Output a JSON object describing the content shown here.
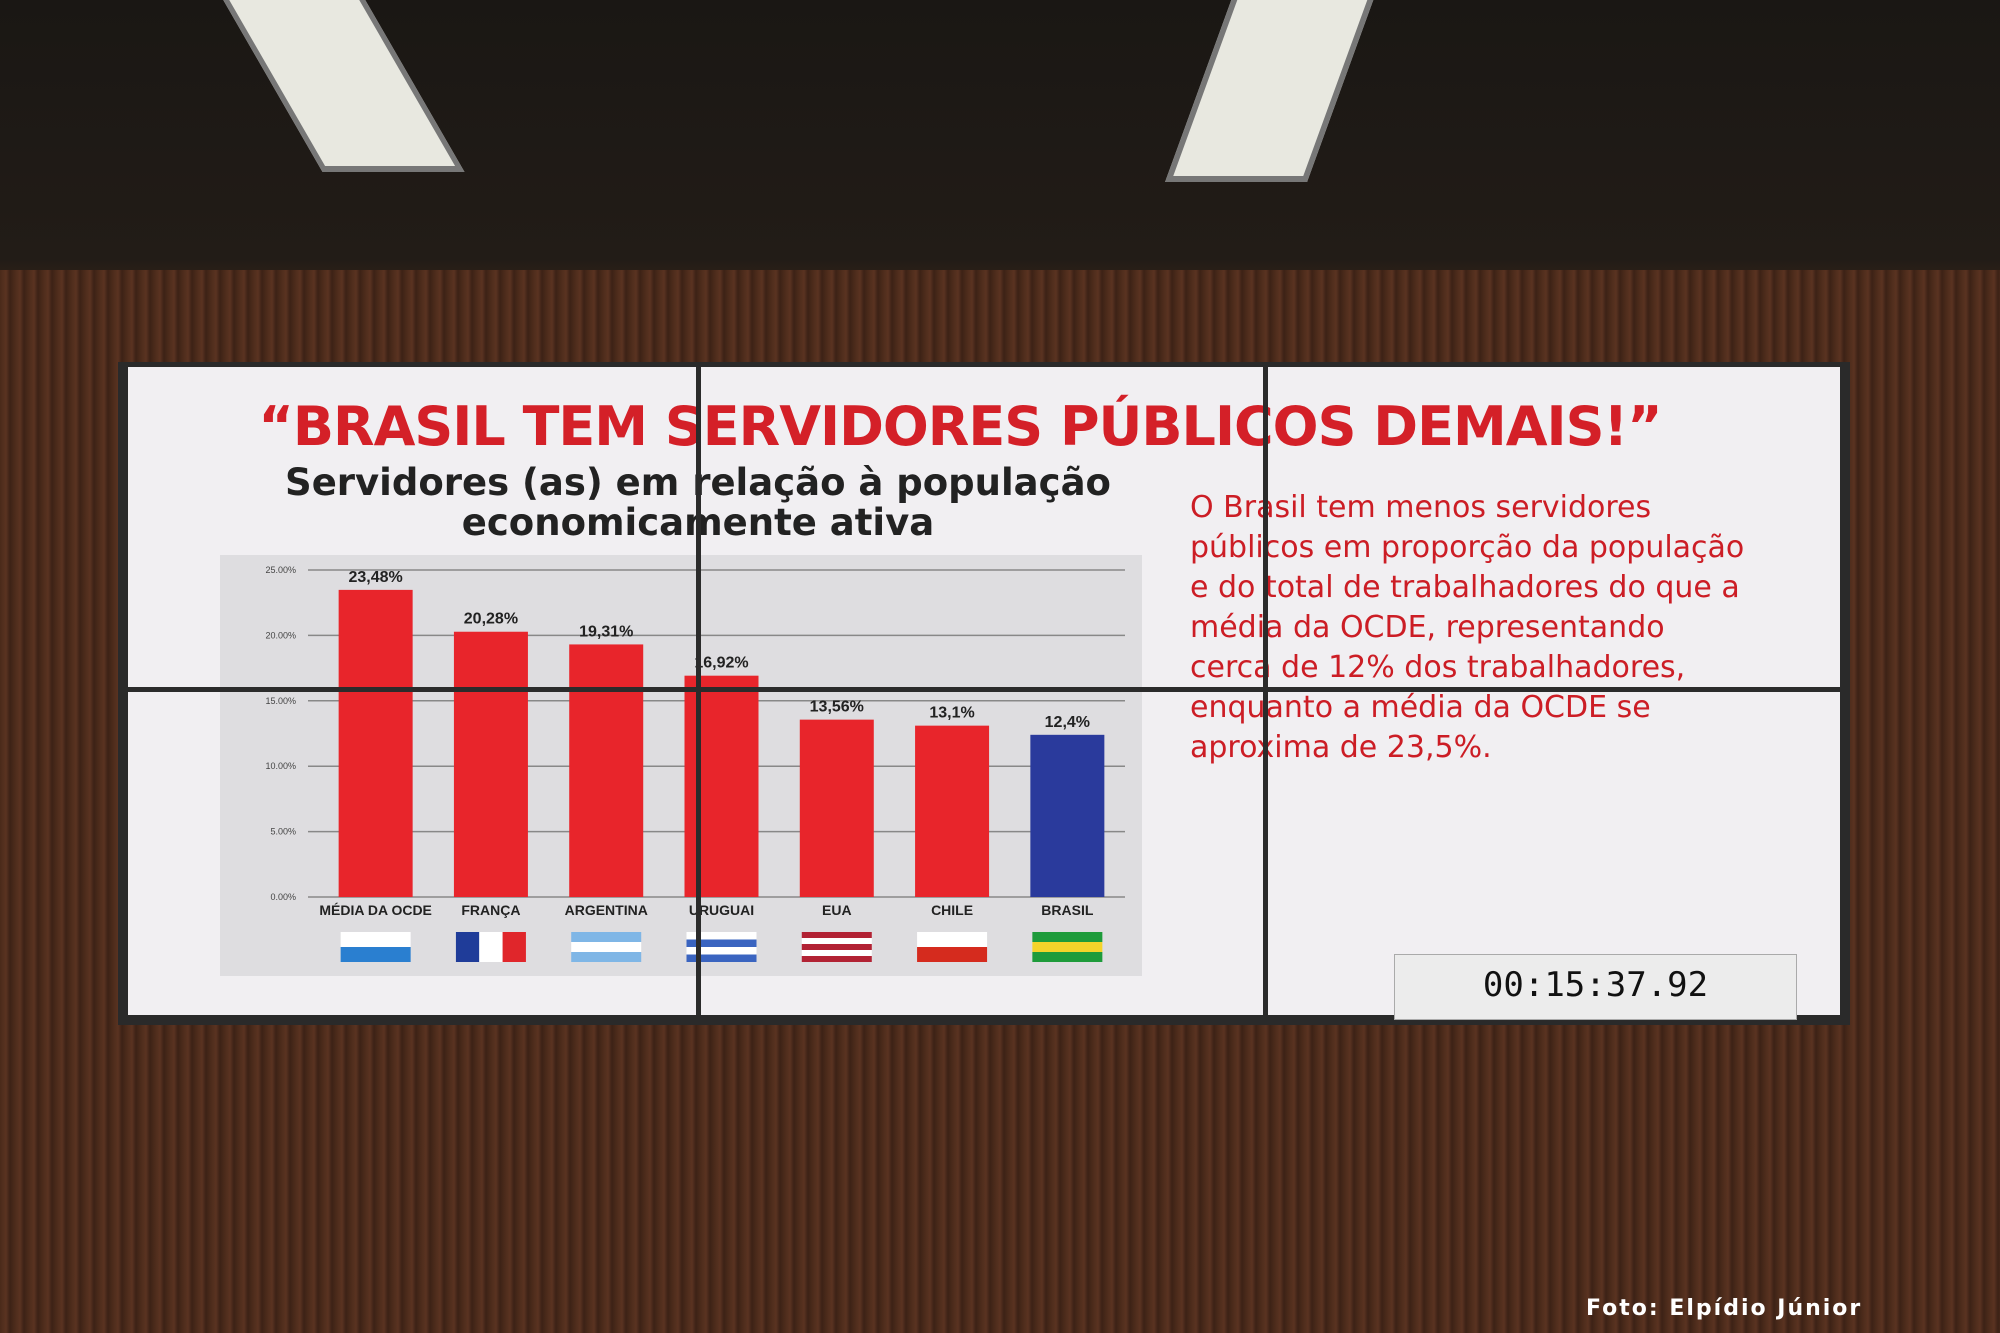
{
  "slide": {
    "heading": "“BRASIL TEM SERVIDORES PÚBLICOS DEMAIS!”",
    "paragraph": "O Brasil tem menos servidores públicos em proporção da população e do total de trabalhadores do que a média da OCDE, representando cerca de 12% dos trabalhadores, enquanto a média da OCDE se aproxima de 23,5%."
  },
  "chart_data": {
    "type": "bar",
    "title": "Servidores (as) em relação à população economicamente ativa",
    "categories": [
      "MÉDIA DA OCDE",
      "FRANÇA",
      "ARGENTINA",
      "URUGUAI",
      "EUA",
      "CHILE",
      "BRASIL"
    ],
    "values": [
      23.48,
      20.28,
      19.31,
      16.92,
      13.56,
      13.1,
      12.4
    ],
    "value_labels": [
      "23,48%",
      "20,28%",
      "19,31%",
      "16,92%",
      "13,56%",
      "13,1%",
      "12,4%"
    ],
    "colors": [
      "#e8252b",
      "#e8252b",
      "#e8252b",
      "#e8252b",
      "#e8252b",
      "#e8252b",
      "#2a3a9c"
    ],
    "ylim": [
      0,
      25
    ],
    "yticks": [
      {
        "value": 0,
        "label": "0.00%"
      },
      {
        "value": 5,
        "label": "5.00%"
      },
      {
        "value": 10,
        "label": "10.00%"
      },
      {
        "value": 15,
        "label": "15.00%"
      },
      {
        "value": 20,
        "label": "20.00%"
      },
      {
        "value": 25,
        "label": "25.00%"
      }
    ],
    "grid": true
  },
  "timer": "00:15:37.92",
  "credit": "Foto: Elpídio Júnior"
}
